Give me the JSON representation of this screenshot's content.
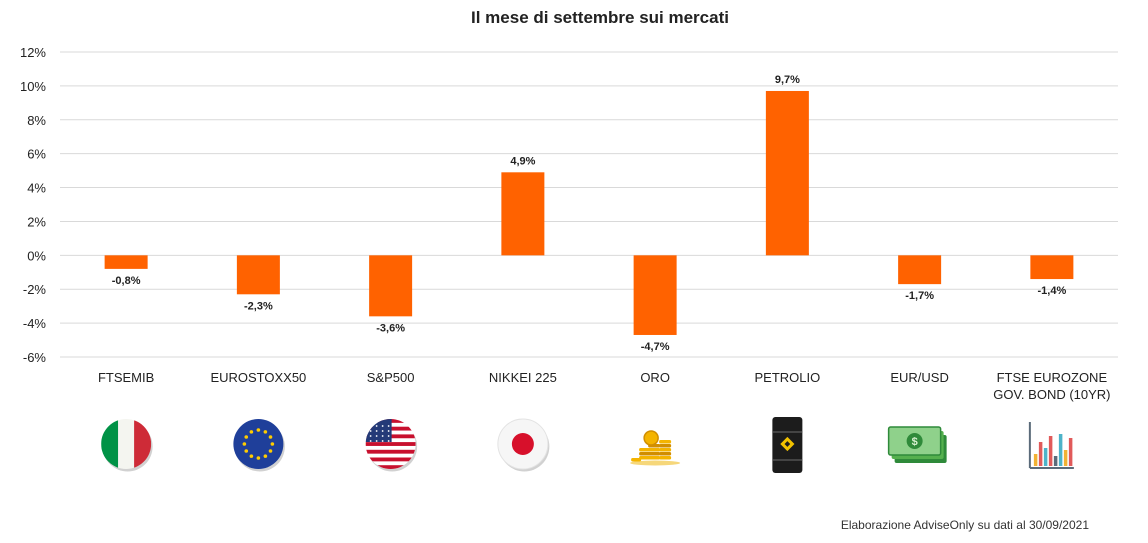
{
  "chart_data": {
    "type": "bar",
    "title": "Il mese di settembre sui mercati",
    "categories": [
      [
        "FTSEMIB"
      ],
      [
        "EUROSTOXX50"
      ],
      [
        "S&P500"
      ],
      [
        "NIKKEI 225"
      ],
      [
        "ORO"
      ],
      [
        "PETROLIO"
      ],
      [
        "EUR/USD"
      ],
      [
        "FTSE EUROZONE",
        "GOV. BOND (10YR)"
      ]
    ],
    "values": [
      -0.8,
      -2.3,
      -3.6,
      4.9,
      -4.7,
      9.7,
      -1.7,
      -1.4
    ],
    "data_labels": [
      "-0,8%",
      "-2,3%",
      "-3,6%",
      "4,9%",
      "-4,7%",
      "9,7%",
      "-1,7%",
      "-1,4%"
    ],
    "ylim": [
      -6,
      12
    ],
    "yticks": [
      12,
      10,
      8,
      6,
      4,
      2,
      0,
      -2,
      -4,
      -6
    ],
    "ytick_labels": [
      "12%",
      "10%",
      "8%",
      "6%",
      "4%",
      "2%",
      "0%",
      "-2%",
      "-4%",
      "-6%"
    ],
    "xlabel": "",
    "ylabel": "",
    "grid": true,
    "bar_color": "#FF6200",
    "icons": [
      "italy-flag-icon",
      "eu-flag-icon",
      "usa-flag-icon",
      "japan-flag-icon",
      "gold-coins-icon",
      "oil-barrel-icon",
      "dollar-banknotes-icon",
      "bar-chart-icon"
    ]
  },
  "footer": {
    "credit": "Elaborazione AdviseOnly su dati al 30/09/2021"
  }
}
